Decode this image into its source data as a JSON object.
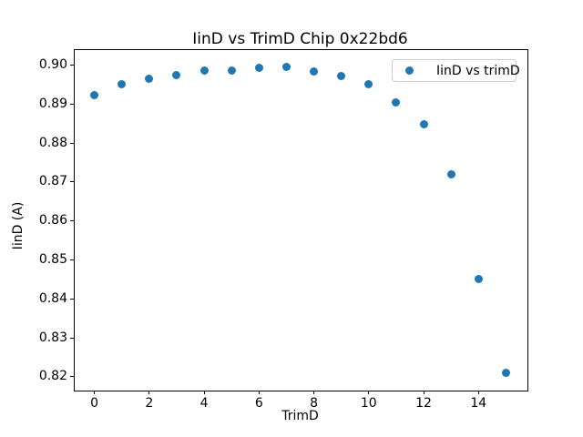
{
  "chart_data": {
    "type": "scatter",
    "title": "IinD vs TrimD Chip 0x22bd6",
    "xlabel": "TrimD",
    "ylabel": "IinD (A)",
    "grid": false,
    "legend": {
      "position": "upper right",
      "entries": [
        "IinD vs trimD"
      ]
    },
    "marker_color": "#1f77b4",
    "xlim": [
      -0.75,
      15.75
    ],
    "ylim": [
      0.8167,
      0.9041
    ],
    "xticks": {
      "values": [
        0,
        2,
        4,
        6,
        8,
        10,
        12,
        14
      ],
      "labels": [
        "0",
        "2",
        "4",
        "6",
        "8",
        "10",
        "12",
        "14"
      ]
    },
    "yticks": {
      "values": [
        0.82,
        0.83,
        0.84,
        0.85,
        0.86,
        0.87,
        0.88,
        0.89,
        0.9
      ],
      "labels": [
        "0.82",
        "0.83",
        "0.84",
        "0.85",
        "0.86",
        "0.87",
        "0.88",
        "0.89",
        "0.90"
      ]
    },
    "series": [
      {
        "name": "IinD vs trimD",
        "x": [
          0,
          1,
          2,
          3,
          4,
          5,
          6,
          7,
          8,
          9,
          10,
          11,
          12,
          13,
          14,
          15
        ],
        "y": [
          0.8924,
          0.895,
          0.8964,
          0.8975,
          0.8985,
          0.8987,
          0.8992,
          0.8995,
          0.8983,
          0.8972,
          0.895,
          0.8905,
          0.8849,
          0.872,
          0.8452,
          0.821
        ]
      }
    ]
  }
}
